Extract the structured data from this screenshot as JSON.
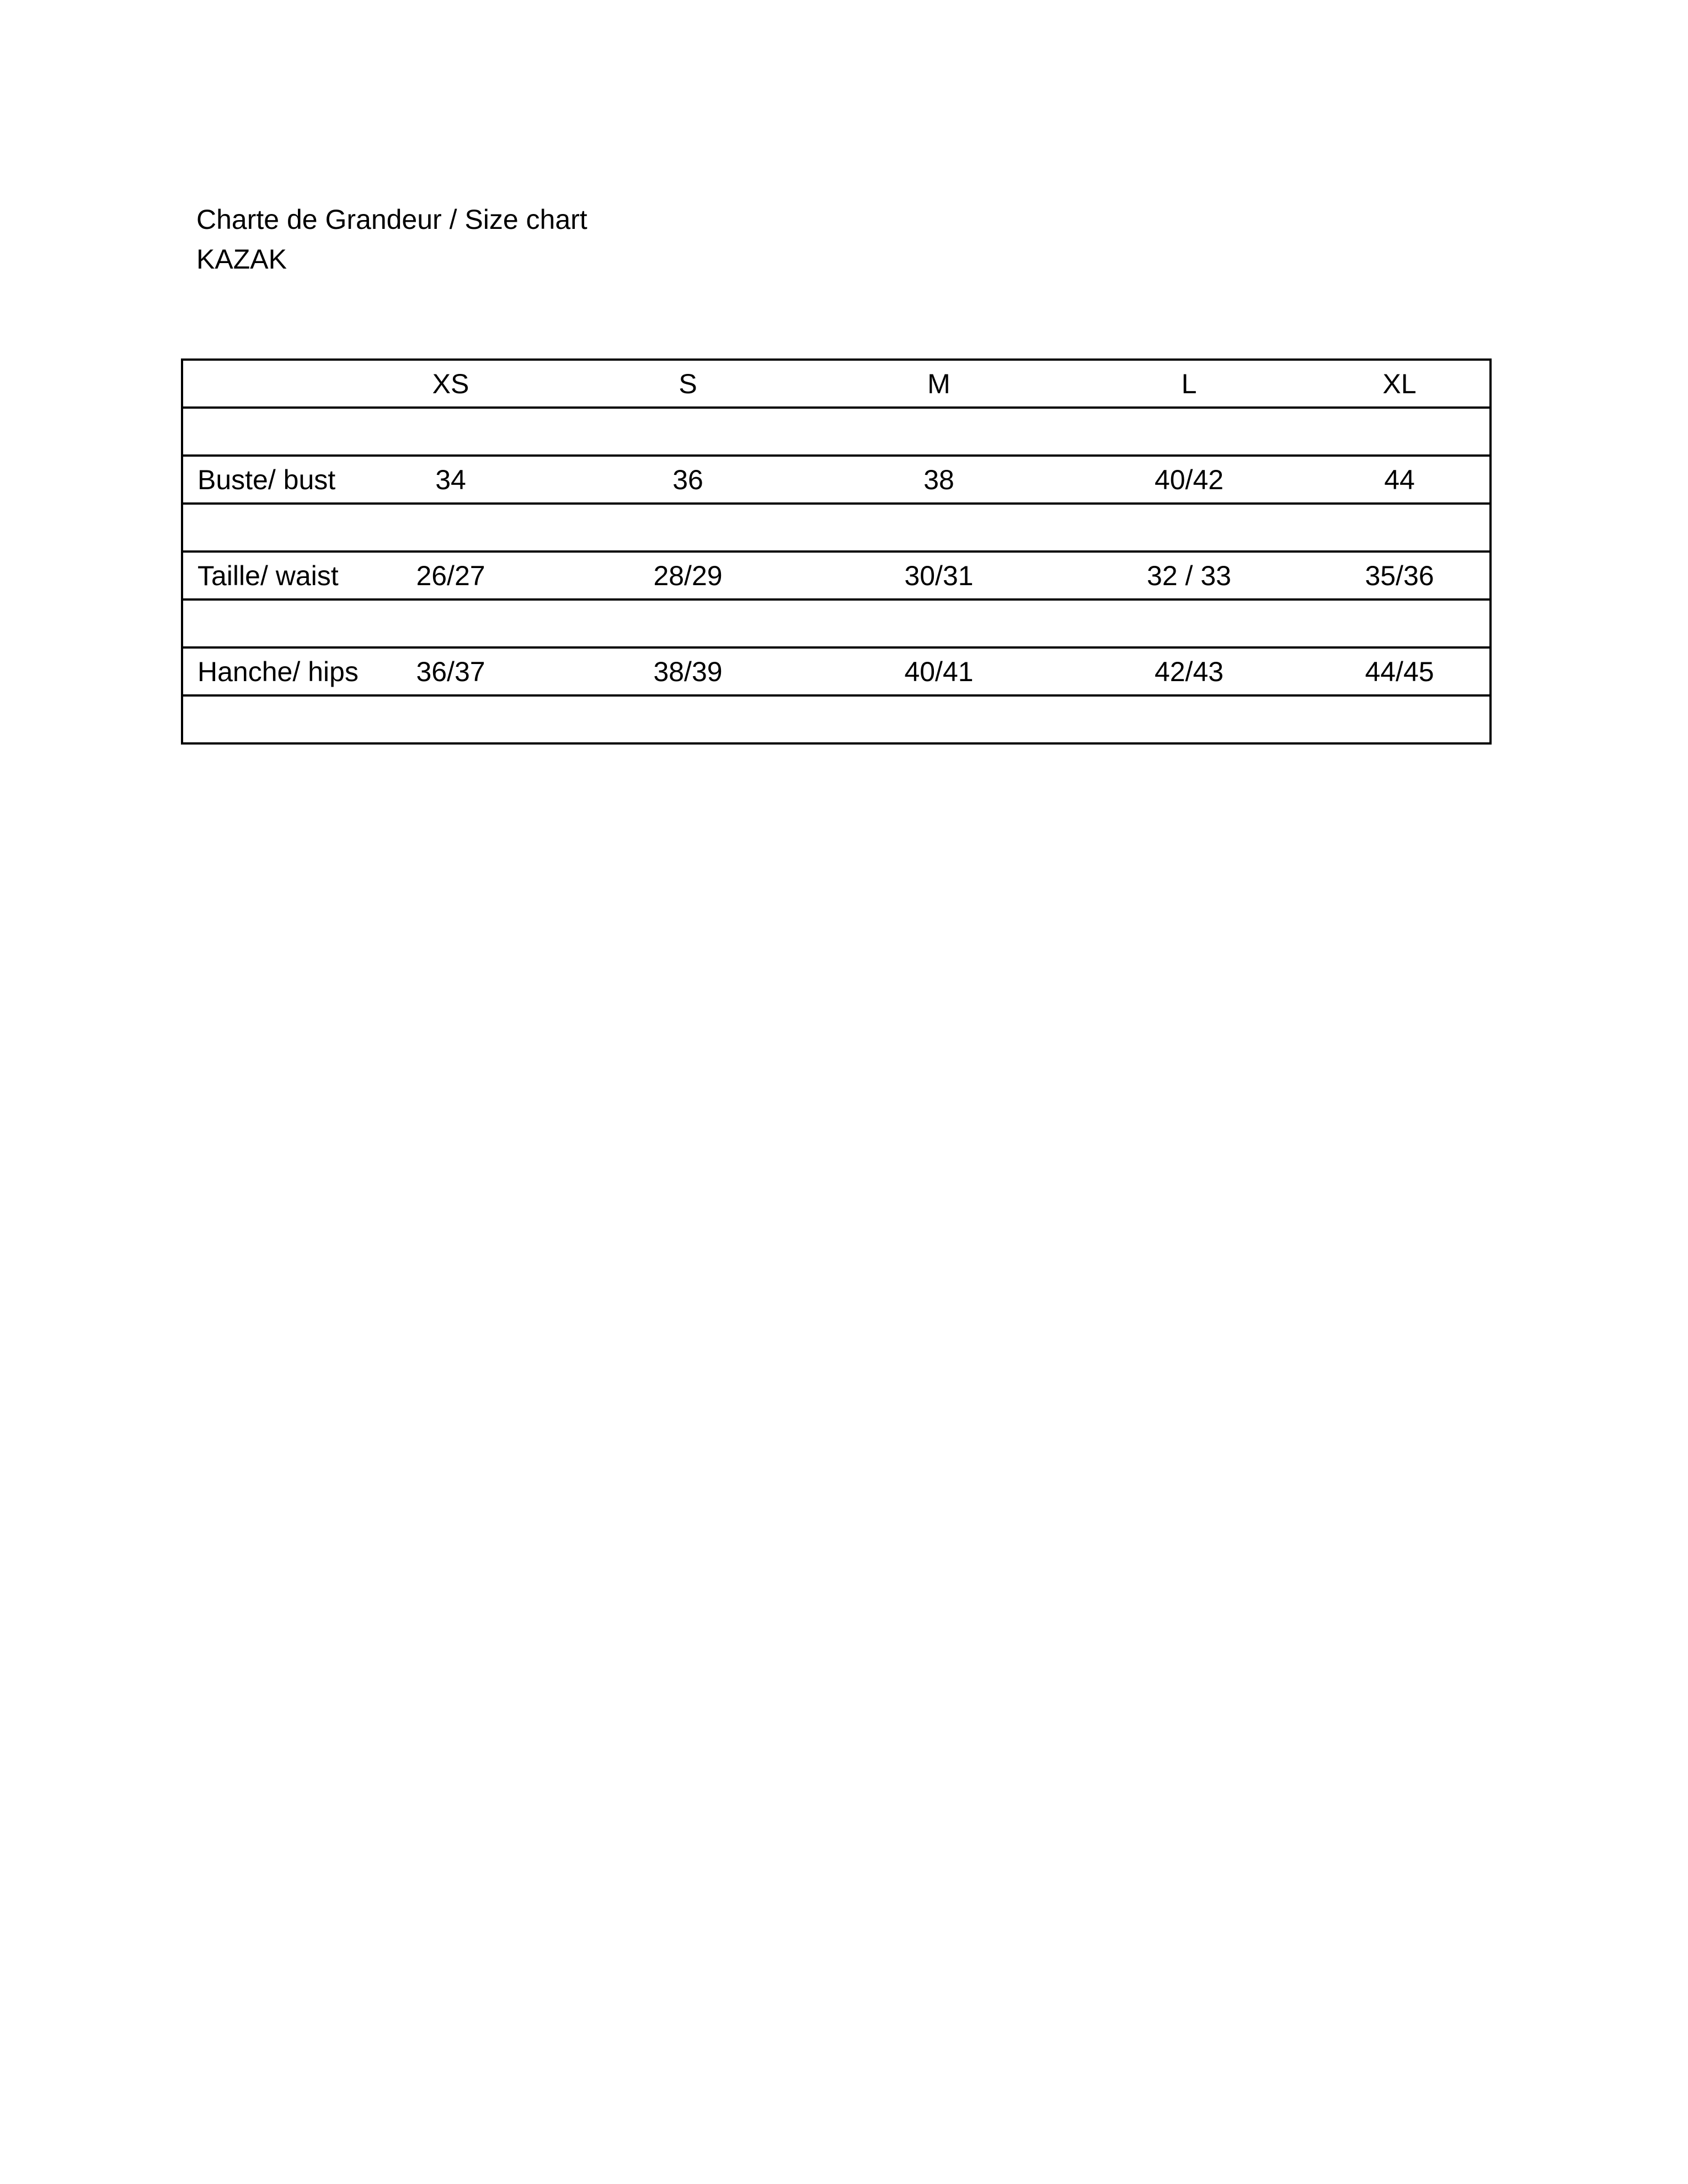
{
  "document": {
    "title": "Charte de Grandeur / Size chart",
    "subtitle": "KAZAK"
  },
  "size_table": {
    "headers": [
      "",
      "XS",
      "S",
      "M",
      "L",
      "XL"
    ],
    "rows": [
      {
        "label": "",
        "values": [
          "",
          "",
          "",
          "",
          ""
        ]
      },
      {
        "label": "Buste/ bust",
        "values": [
          "34",
          "36",
          "38",
          "40/42",
          "44"
        ]
      },
      {
        "label": "",
        "values": [
          "",
          "",
          "",
          "",
          ""
        ]
      },
      {
        "label": "Taille/ waist",
        "values": [
          "26/27",
          "28/29",
          "30/31",
          "32 / 33",
          "35/36"
        ]
      },
      {
        "label": "",
        "values": [
          "",
          "",
          "",
          "",
          ""
        ]
      },
      {
        "label": "Hanche/ hips",
        "values": [
          "36/37",
          "38/39",
          "40/41",
          "42/43",
          "44/45"
        ]
      },
      {
        "label": "",
        "values": [
          "",
          "",
          "",
          "",
          ""
        ]
      }
    ]
  }
}
